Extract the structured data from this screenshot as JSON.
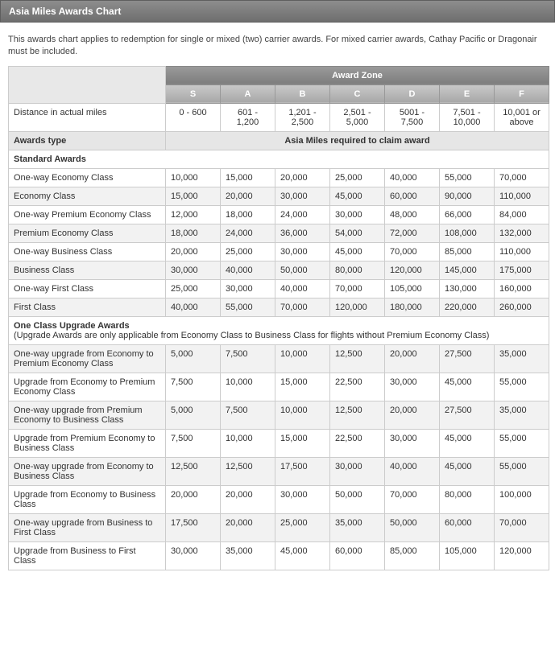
{
  "title": "Asia Miles Awards Chart",
  "description": "This awards chart applies to redemption for single or mixed (two) carrier awards. For mixed carrier awards, Cathay Pacific or Dragonair must be included.",
  "zone_header": "Award Zone",
  "zones": [
    "S",
    "A",
    "B",
    "C",
    "D",
    "E",
    "F"
  ],
  "distance_label": "Distance in actual miles",
  "distances": [
    "0 - 600",
    "601 - 1,200",
    "1,201 - 2,500",
    "2,501 - 5,000",
    "5001 - 7,500",
    "7,501 - 10,000",
    "10,001 or above"
  ],
  "awards_type_label": "Awards type",
  "miles_required_label": "Asia Miles required to claim award",
  "standard_awards_label": "Standard Awards",
  "standard_rows": [
    {
      "label": "One-way Economy Class",
      "values": [
        "10,000",
        "15,000",
        "20,000",
        "25,000",
        "40,000",
        "55,000",
        "70,000"
      ]
    },
    {
      "label": "Economy Class",
      "values": [
        "15,000",
        "20,000",
        "30,000",
        "45,000",
        "60,000",
        "90,000",
        "110,000"
      ]
    },
    {
      "label": "One-way Premium Economy Class",
      "values": [
        "12,000",
        "18,000",
        "24,000",
        "30,000",
        "48,000",
        "66,000",
        "84,000"
      ]
    },
    {
      "label": "Premium Economy Class",
      "values": [
        "18,000",
        "24,000",
        "36,000",
        "54,000",
        "72,000",
        "108,000",
        "132,000"
      ]
    },
    {
      "label": "One-way Business Class",
      "values": [
        "20,000",
        "25,000",
        "30,000",
        "45,000",
        "70,000",
        "85,000",
        "110,000"
      ]
    },
    {
      "label": "Business Class",
      "values": [
        "30,000",
        "40,000",
        "50,000",
        "80,000",
        "120,000",
        "145,000",
        "175,000"
      ]
    },
    {
      "label": "One-way First Class",
      "values": [
        "25,000",
        "30,000",
        "40,000",
        "70,000",
        "105,000",
        "130,000",
        "160,000"
      ]
    },
    {
      "label": "First Class",
      "values": [
        "40,000",
        "55,000",
        "70,000",
        "120,000",
        "180,000",
        "220,000",
        "260,000"
      ]
    }
  ],
  "upgrade_awards_label": "One Class Upgrade Awards",
  "upgrade_note": "(Upgrade Awards are only applicable from Economy Class to Business Class for flights without Premium Economy Class)",
  "upgrade_rows": [
    {
      "label": "One-way upgrade from Economy to Premium Economy Class",
      "values": [
        "5,000",
        "7,500",
        "10,000",
        "12,500",
        "20,000",
        "27,500",
        "35,000"
      ]
    },
    {
      "label": "Upgrade from Economy to Premium Economy Class",
      "values": [
        "7,500",
        "10,000",
        "15,000",
        "22,500",
        "30,000",
        "45,000",
        "55,000"
      ]
    },
    {
      "label": "One-way upgrade from Premium Economy to Business Class",
      "values": [
        "5,000",
        "7,500",
        "10,000",
        "12,500",
        "20,000",
        "27,500",
        "35,000"
      ]
    },
    {
      "label": "Upgrade from Premium Economy to Business Class",
      "values": [
        "7,500",
        "10,000",
        "15,000",
        "22,500",
        "30,000",
        "45,000",
        "55,000"
      ]
    },
    {
      "label": "One-way upgrade from Economy to Business Class",
      "values": [
        "12,500",
        "12,500",
        "17,500",
        "30,000",
        "40,000",
        "45,000",
        "55,000"
      ]
    },
    {
      "label": "Upgrade from Economy to Business Class",
      "values": [
        "20,000",
        "20,000",
        "30,000",
        "50,000",
        "70,000",
        "80,000",
        "100,000"
      ]
    },
    {
      "label": "One-way upgrade from Business to First Class",
      "values": [
        "17,500",
        "20,000",
        "25,000",
        "35,000",
        "50,000",
        "60,000",
        "70,000"
      ]
    },
    {
      "label": "Upgrade from Business to First Class",
      "values": [
        "30,000",
        "35,000",
        "45,000",
        "60,000",
        "85,000",
        "105,000",
        "120,000"
      ]
    }
  ],
  "colors": {
    "title_bg_from": "#8d8d8d",
    "title_bg_to": "#6e6e6e",
    "header_bg_from": "#9a9a9a",
    "header_bg_to": "#7d7d7d",
    "zone_bg_from": "#c9c9c9",
    "zone_bg_to": "#a7a7a7",
    "section_bg": "#e6e6e6",
    "row_alt_bg": "#f2f2f2",
    "border": "#cccccc",
    "text": "#333333"
  }
}
